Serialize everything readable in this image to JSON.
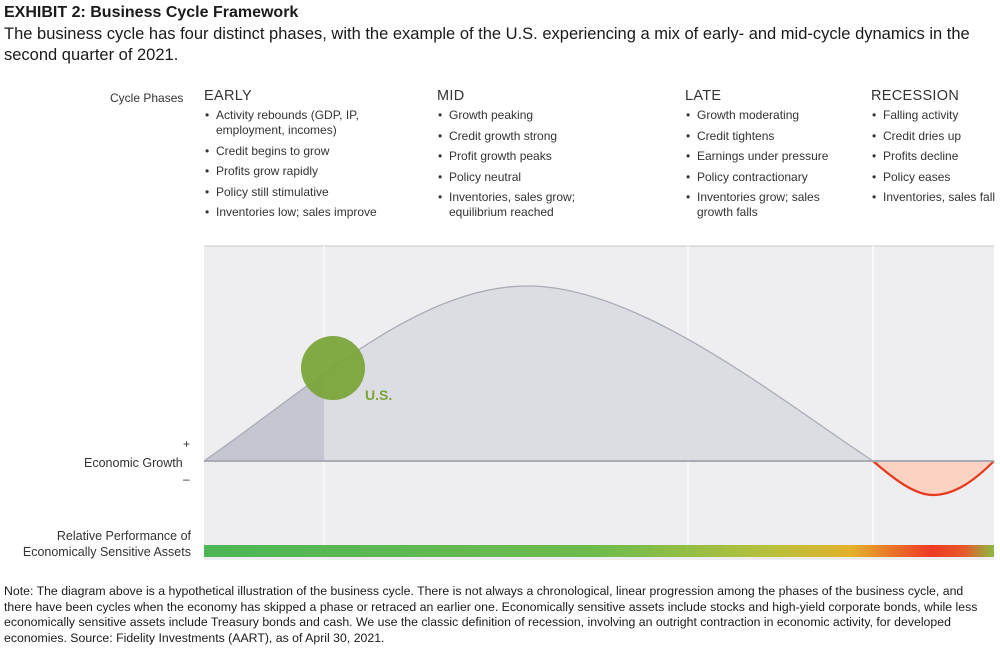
{
  "header": {
    "exhibit": "EXHIBIT 2: Business Cycle Framework",
    "subtitle": "The business cycle has four distinct phases, with the example of the U.S. experiencing a mix of early- and mid-cycle dynamics in the second quarter of 2021."
  },
  "cycle_phases_label": "Cycle Phases",
  "phases": [
    {
      "name": "EARLY",
      "bullets": [
        "Activity rebounds (GDP, IP, employment, incomes)",
        "Credit begins to grow",
        "Profits grow rapidly",
        "Policy still stimulative",
        "Inventories low; sales improve"
      ]
    },
    {
      "name": "MID",
      "bullets": [
        "Growth peaking",
        "Credit growth strong",
        "Profit growth peaks",
        "Policy neutral",
        "Inventories, sales grow; equilibrium reached"
      ]
    },
    {
      "name": "LATE",
      "bullets": [
        "Growth moderating",
        "Credit tightens",
        "Earnings under pressure",
        "Policy contractionary",
        "Inventories grow; sales growth falls"
      ]
    },
    {
      "name": "RECESSION",
      "bullets": [
        "Falling activity",
        "Credit dries up",
        "Profits decline",
        "Policy eases",
        "Inventories, sales fall"
      ]
    }
  ],
  "marker_label": "U.S.",
  "economic_growth": {
    "plus": "+",
    "label": "Economic Growth",
    "minus": "–"
  },
  "relative_performance": {
    "line1": "Relative Performance of",
    "line2": "Economically Sensitive Assets"
  },
  "note": "Note: The diagram above is a hypothetical illustration of the business cycle. There is not always a chronological, linear progression among the phases of the business cycle, and there have been cycles when the economy has skipped a phase or retraced an earlier one. Economically sensitive assets include stocks and high-yield corporate bonds, while less economically sensitive assets include Treasury bonds and cash. We use the classic definition of recession, involving an outright contraction in economic activity, for developed economies. Source: Fidelity Investments (AART), as of April 30, 2021.",
  "colors": {
    "panel": "#eeeef1",
    "curve_fill": "#dcdde3",
    "early_fill": "#c4c6d0",
    "axis": "#a9abb5",
    "marker": "#7aa43a",
    "recession_fill": "#fcd3c3",
    "recession_line": "#e63a1e",
    "bar_green": "#4db656",
    "bar_yellow": "#e6b43a",
    "bar_red": "#ee3327"
  }
}
